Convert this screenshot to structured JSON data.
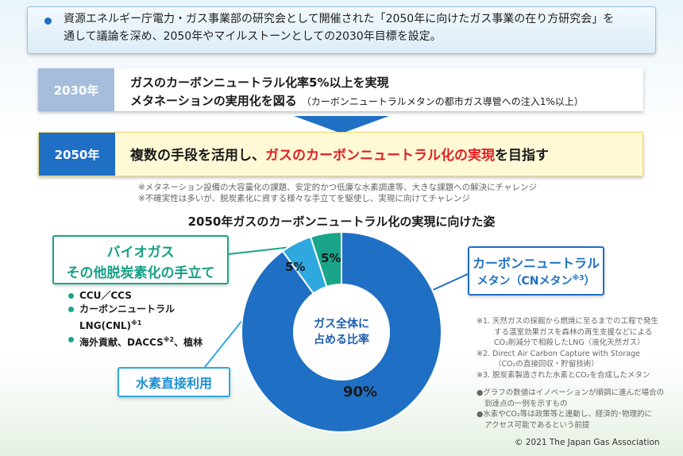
{
  "intro": {
    "line1": "資源エネルギー庁電力・ガス事業部の研究会として開催された「2050年に向けたガス事業の在り方研究会」を",
    "line2": "通して議論を深め、2050年やマイルストーンとしての2030年目標を設定。"
  },
  "goal_2030": {
    "year": "2030年",
    "line1": "ガスのカーボンニュートラル化率5%以上を実現",
    "line2": "メタネーションの実用化を図る",
    "line2_note": "（カーボンニュートラルメタンの都市ガス導管への注入1%以上）"
  },
  "goal_2050": {
    "year": "2050年",
    "text_a": "複数の手段を活用し、",
    "text_red": "ガスのカーボンニュートラル化の実現",
    "text_b": "を目指す"
  },
  "notes": {
    "line1": "※メタネーション設備の大容量化の課題、安定的かつ低廉な水素調達等、大きな課題への解決にチャレンジ",
    "line2": "※不確実性は多いが、脱炭素化に資する様々な手立てを駆使し、実現に向けてチャレンジ"
  },
  "chart_data": {
    "type": "pie",
    "title": "2050年ガスのカーボンニュートラル化の実現に向けた姿",
    "center_label_line1": "ガス全体に",
    "center_label_line2": "占める比率",
    "slices": [
      {
        "label": "カーボンニュートラルメタン",
        "value": 90,
        "display": "90%",
        "color": "#1f6fc4"
      },
      {
        "label": "水素直接利用",
        "value": 5,
        "display": "5%",
        "color": "#2fa8e0"
      },
      {
        "label": "バイオガス その他脱炭素化の手立て",
        "value": 5,
        "display": "5%",
        "color": "#1aa58a"
      }
    ]
  },
  "bio": {
    "line1": "バイオガス",
    "line2": "その他脱炭素化の手立て",
    "items": {
      "i1": "CCU／CCS",
      "i2a": "カーボンニュートラル",
      "i2b": "LNG(CNL)",
      "i2sup": "※1",
      "i3a": "海外貢献、DACCS",
      "i3sup": "※2",
      "i3b": "、植林"
    }
  },
  "hydrogen": {
    "label": "水素直接利用"
  },
  "cn_methane": {
    "line1": "カーボンニュートラル",
    "line2": "メタン（CNメタン",
    "line2_sup": "※3",
    "line2_end": "）"
  },
  "footnotes": {
    "f1a": "※1. 天然ガスの採掘から燃焼に至るまでの工程で発生",
    "f1b": "する温室効果ガスを森林の再生支援などによる",
    "f1c": "CO₂削減分で相殺したLNG（液化天然ガス）",
    "f2a": "※2. Direct Air Carbon Capture with Storage",
    "f2b": "（CO₂の直接回収・貯留技術）",
    "f3": "※3. 脱炭素製造された水素とCO₂を合成したメタン"
  },
  "bottom_notes": {
    "n1a": "●グラフの数値はイノベーションが順調に進んだ場合の",
    "n1b": "到達点の一例を示すもの",
    "n2a": "●水素やCO₂等は政策等と連動し、経済的･物理的に",
    "n2b": "アクセス可能であるという前提"
  },
  "copyright": "© 2021 The Japan Gas Association"
}
